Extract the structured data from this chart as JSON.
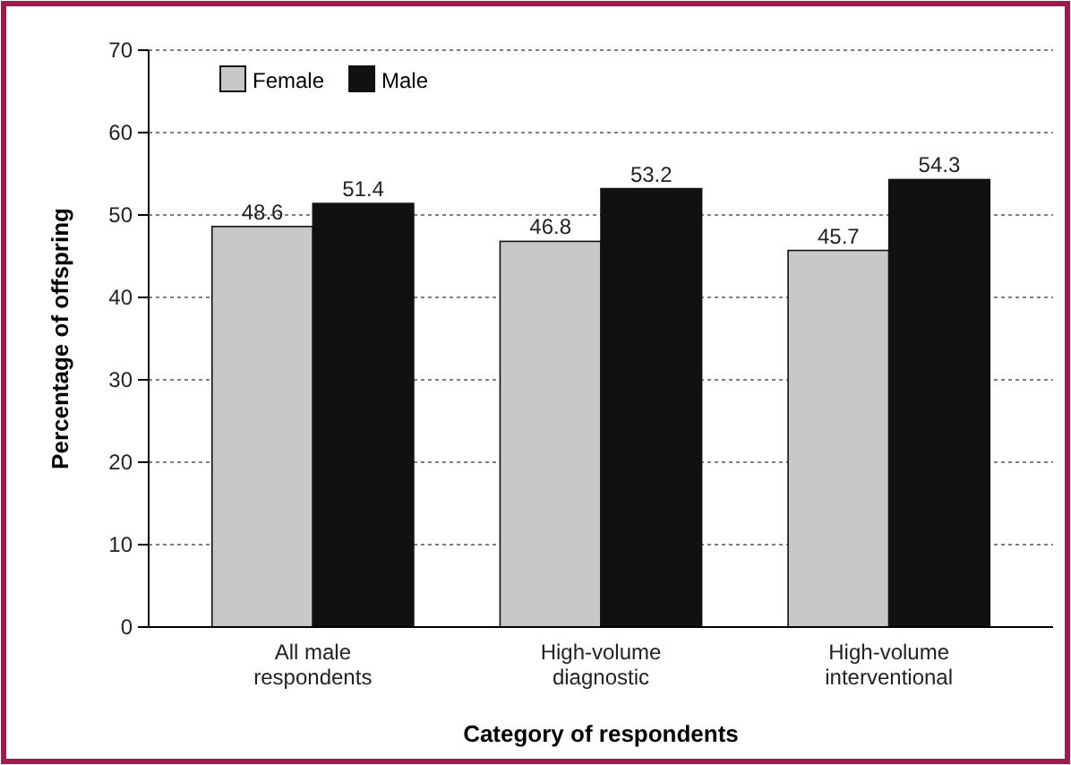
{
  "chart_data": {
    "type": "bar",
    "xlabel": "Category of respondents",
    "ylabel": "Percentage of offspring",
    "categories": [
      "All male respondents",
      "High-volume diagnostic",
      "High-volume interventional"
    ],
    "series": [
      {
        "name": "Female",
        "color": "#c8c8c8",
        "values": [
          48.6,
          46.8,
          45.7
        ]
      },
      {
        "name": "Male",
        "color": "#111111",
        "values": [
          51.4,
          53.2,
          54.3
        ]
      }
    ],
    "ylim": [
      0,
      70
    ],
    "yticks": [
      0,
      10,
      20,
      30,
      40,
      50,
      60,
      70
    ],
    "grid": "y",
    "legend": "top left",
    "data_labels": true
  }
}
